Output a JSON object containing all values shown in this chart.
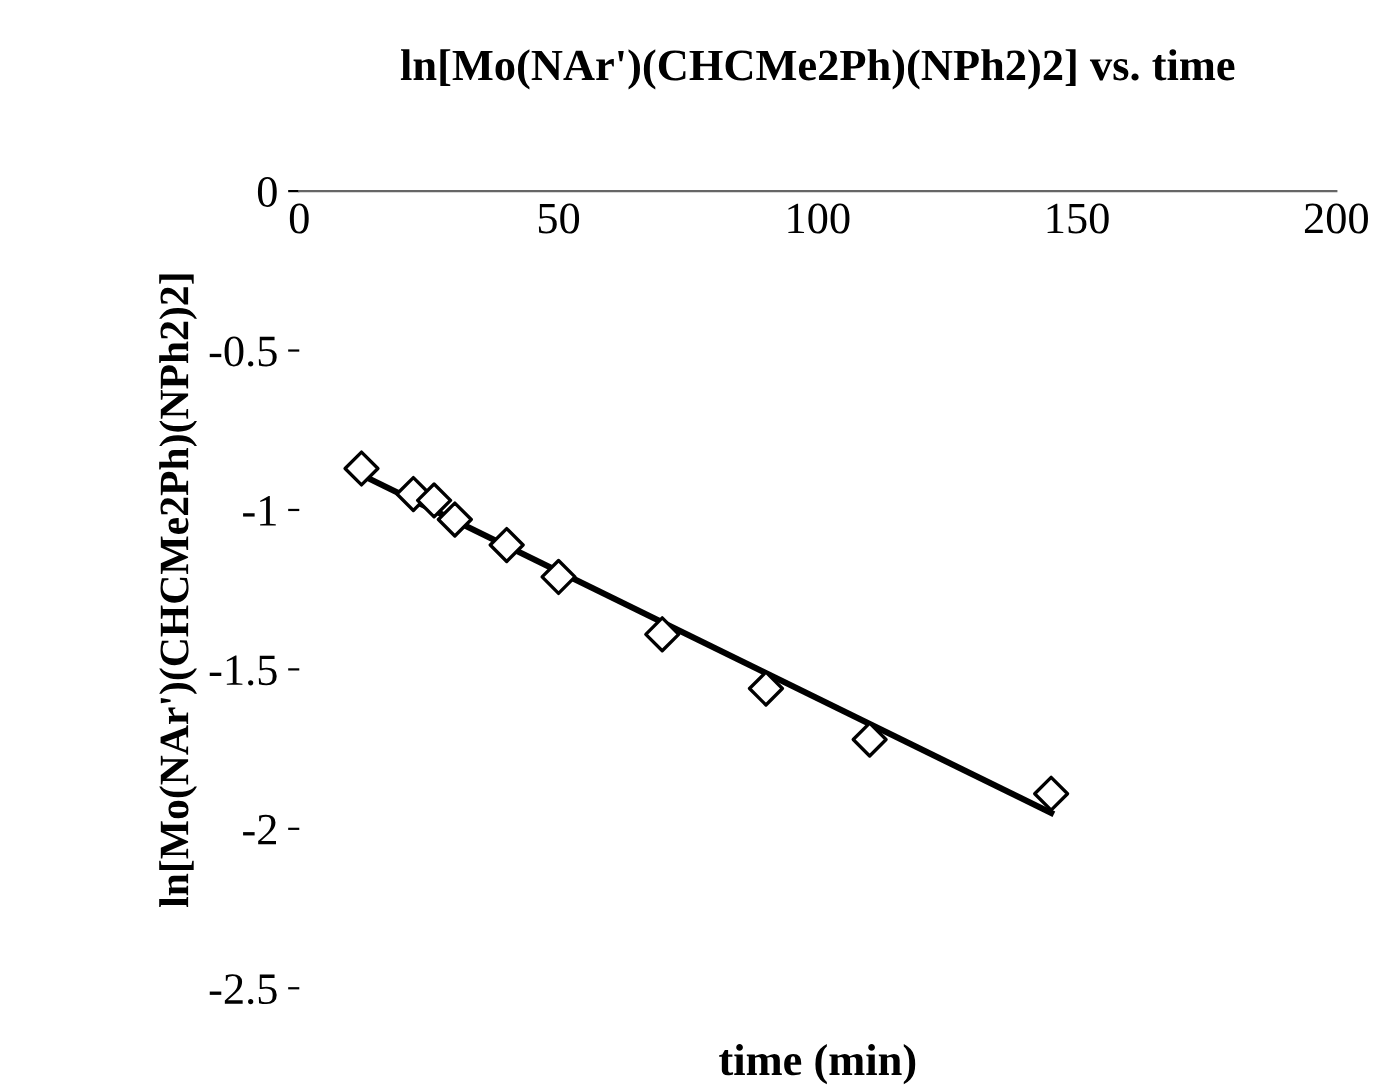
{
  "chart_data": {
    "type": "scatter",
    "title": "ln[Mo(NAr')(CHCMe2Ph)(NPh2)2] vs. time",
    "xlabel": "time (min)",
    "ylabel": "ln[Mo(NAr')(CHCMe2Ph)(NPh2)2]",
    "x": [
      12,
      22,
      26,
      30,
      40,
      50,
      70,
      90,
      110,
      145
    ],
    "series": [
      {
        "color": "#000000",
        "marker": "diamond",
        "values": [
          -0.87,
          -0.95,
          -0.97,
          -1.03,
          -1.11,
          -1.21,
          -1.39,
          -1.56,
          -1.72,
          -1.89
        ]
      },
      {
        "type": "line",
        "color": "#000000",
        "marker": "none",
        "x": [
          12,
          145
        ],
        "values": [
          -0.89,
          -1.95
        ]
      }
    ],
    "xlim": [
      0,
      200
    ],
    "xticks": [
      0,
      50,
      100,
      150,
      200
    ],
    "ylim": [
      -2.5,
      0
    ],
    "yticks": [
      0,
      -0.5,
      -1,
      -1.5,
      -2,
      -2.5
    ],
    "grid": false,
    "legend": false
  }
}
